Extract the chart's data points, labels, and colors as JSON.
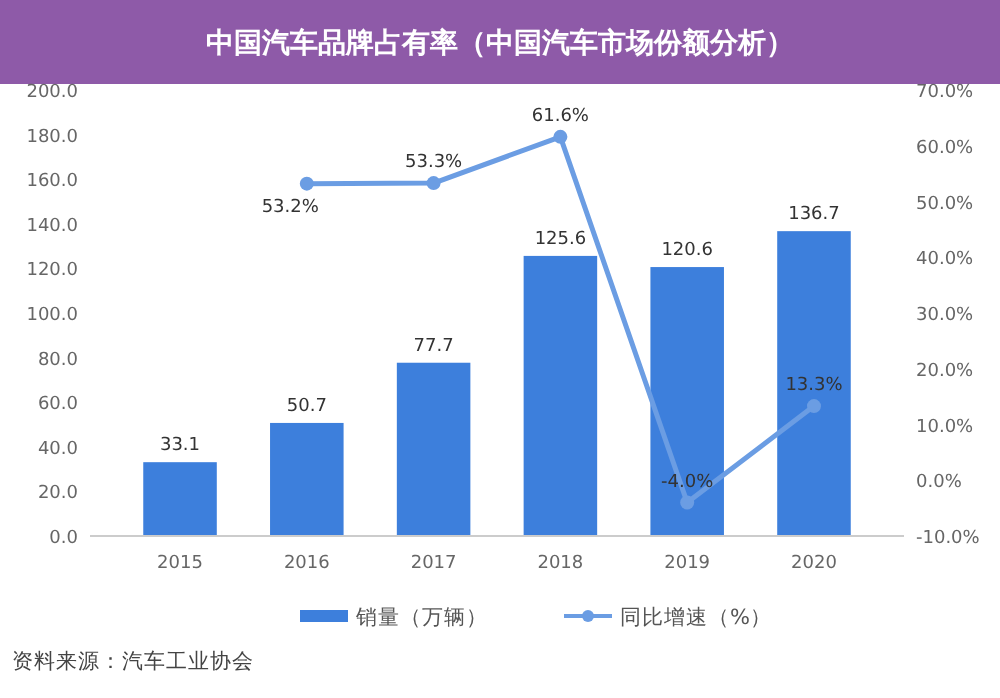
{
  "chart_data": {
    "type": "bar",
    "title": "中国汽车品牌占有率（中国汽车市场份额分析）",
    "categories": [
      "2015",
      "2016",
      "2017",
      "2018",
      "2019",
      "2020"
    ],
    "series": [
      {
        "name": "销量（万辆）",
        "color": "#3d7fdc",
        "values": [
          33.1,
          50.7,
          77.7,
          125.6,
          120.6,
          136.7
        ],
        "value_labels": [
          "33.1",
          "50.7",
          "77.7",
          "125.6",
          "120.6",
          "136.7"
        ]
      },
      {
        "name": "同比增速（%）",
        "type": "line",
        "axis": "y2",
        "color": "#6b9de3",
        "marker": "circle",
        "values": [
          null,
          53.2,
          53.3,
          61.6,
          -4.0,
          13.3
        ],
        "value_labels": [
          null,
          "53.2%",
          "53.3%",
          "61.6%",
          "-4.0%",
          "13.3%"
        ]
      }
    ],
    "ylim": [
      0,
      200
    ],
    "yticks": [
      {
        "value": 0,
        "label": "0.0"
      },
      {
        "value": 20,
        "label": "20.0"
      },
      {
        "value": 40,
        "label": "40.0"
      },
      {
        "value": 60,
        "label": "60.0"
      },
      {
        "value": 80,
        "label": "80.0"
      },
      {
        "value": 100,
        "label": "100.0"
      },
      {
        "value": 120,
        "label": "120.0"
      },
      {
        "value": 140,
        "label": "140.0"
      },
      {
        "value": 160,
        "label": "160.0"
      },
      {
        "value": 180,
        "label": "180.0"
      },
      {
        "value": 200,
        "label": "200.0"
      }
    ],
    "y2lim": [
      -10,
      70
    ],
    "y2ticks": [
      {
        "value": -10,
        "label": "-10.0%"
      },
      {
        "value": 0,
        "label": "0.0%"
      },
      {
        "value": 10,
        "label": "10.0%"
      },
      {
        "value": 20,
        "label": "20.0%"
      },
      {
        "value": 30,
        "label": "30.0%"
      },
      {
        "value": 40,
        "label": "40.0%"
      },
      {
        "value": 50,
        "label": "50.0%"
      },
      {
        "value": 60,
        "label": "60.0%"
      },
      {
        "value": 70,
        "label": "70.0%"
      }
    ],
    "legend": "bottom",
    "grid": false,
    "annotations": [
      "资料来源：汽车工业协会"
    ]
  }
}
